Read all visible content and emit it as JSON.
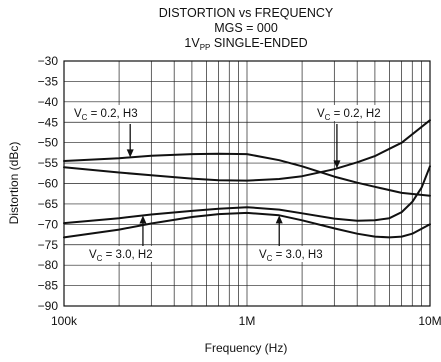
{
  "chart_data": {
    "type": "line",
    "title": "DISTORTION vs FREQUENCY",
    "subtitle_1": "MGS = 000",
    "subtitle_2": {
      "prefix": "1V",
      "sub": "PP",
      "suffix": " SINGLE-ENDED"
    },
    "xlabel": "Frequency (Hz)",
    "ylabel": "Distortion (dBc)",
    "x_scale": "log",
    "xlim": [
      100000,
      10000000
    ],
    "ylim": [
      -90,
      -30
    ],
    "grid": true,
    "x_ticks": [
      {
        "value": 100000,
        "label": "100k"
      },
      {
        "value": 1000000,
        "label": "1M"
      },
      {
        "value": 10000000,
        "label": "10M"
      }
    ],
    "y_ticks": [
      {
        "value": -30,
        "label": "−30"
      },
      {
        "value": -35,
        "label": "−35"
      },
      {
        "value": -40,
        "label": "−40"
      },
      {
        "value": -45,
        "label": "−45"
      },
      {
        "value": -50,
        "label": "−50"
      },
      {
        "value": -55,
        "label": "−55"
      },
      {
        "value": -60,
        "label": "−60"
      },
      {
        "value": -65,
        "label": "−65"
      },
      {
        "value": -70,
        "label": "−70"
      },
      {
        "value": -75,
        "label": "−75"
      },
      {
        "value": -80,
        "label": "−80"
      },
      {
        "value": -85,
        "label": "−85"
      },
      {
        "value": -90,
        "label": "−90"
      }
    ],
    "series": [
      {
        "name": "V_C = 0.2, H3",
        "x": [
          100000,
          200000,
          300000,
          500000,
          700000,
          1000000,
          1500000,
          2000000,
          3000000,
          4000000,
          5000000,
          7000000,
          10000000
        ],
        "y": [
          -54.5,
          -53.8,
          -53.2,
          -52.8,
          -52.7,
          -52.8,
          -54.3,
          -55.8,
          -58.3,
          -59.8,
          -60.8,
          -62.3,
          -63.0
        ]
      },
      {
        "name": "V_C = 0.2, H2",
        "x": [
          100000,
          200000,
          300000,
          500000,
          700000,
          1000000,
          1500000,
          2000000,
          3000000,
          4000000,
          5000000,
          7000000,
          10000000
        ],
        "y": [
          -56.0,
          -57.3,
          -58.0,
          -58.8,
          -59.2,
          -59.3,
          -58.9,
          -58.2,
          -56.5,
          -54.8,
          -53.3,
          -50.0,
          -44.5
        ]
      },
      {
        "name": "V_C = 3.0, H2",
        "x": [
          100000,
          200000,
          300000,
          500000,
          700000,
          1000000,
          1500000,
          2000000,
          3000000,
          4000000,
          5000000,
          6000000,
          7000000,
          8000000,
          9000000,
          10000000
        ],
        "y": [
          -69.7,
          -68.5,
          -67.6,
          -66.7,
          -66.2,
          -65.8,
          -66.4,
          -67.3,
          -68.6,
          -69.1,
          -69.0,
          -68.5,
          -67.0,
          -64.5,
          -61.0,
          -55.8
        ]
      },
      {
        "name": "V_C = 3.0, H3",
        "x": [
          100000,
          200000,
          300000,
          500000,
          700000,
          1000000,
          1500000,
          2000000,
          3000000,
          4000000,
          5000000,
          6000000,
          7000000,
          8000000,
          10000000
        ],
        "y": [
          -73.2,
          -71.3,
          -69.8,
          -68.2,
          -67.5,
          -67.2,
          -67.8,
          -69.0,
          -71.0,
          -72.3,
          -73.0,
          -73.2,
          -73.0,
          -72.3,
          -70.0
        ]
      }
    ],
    "annotations": [
      {
        "label": {
          "base": "V",
          "sub": "C",
          "rest": " = 0.2, H3"
        },
        "series": 0,
        "at_x": 230000
      },
      {
        "label": {
          "base": "V",
          "sub": "C",
          "rest": " = 0.2, H2"
        },
        "series": 1,
        "at_x": 3100000
      },
      {
        "label": {
          "base": "V",
          "sub": "C",
          "rest": " = 3.0, H2"
        },
        "series": 2,
        "at_x": 270000
      },
      {
        "label": {
          "base": "V",
          "sub": "C",
          "rest": " = 3.0, H3"
        },
        "series": 3,
        "at_x": 1500000
      }
    ]
  }
}
